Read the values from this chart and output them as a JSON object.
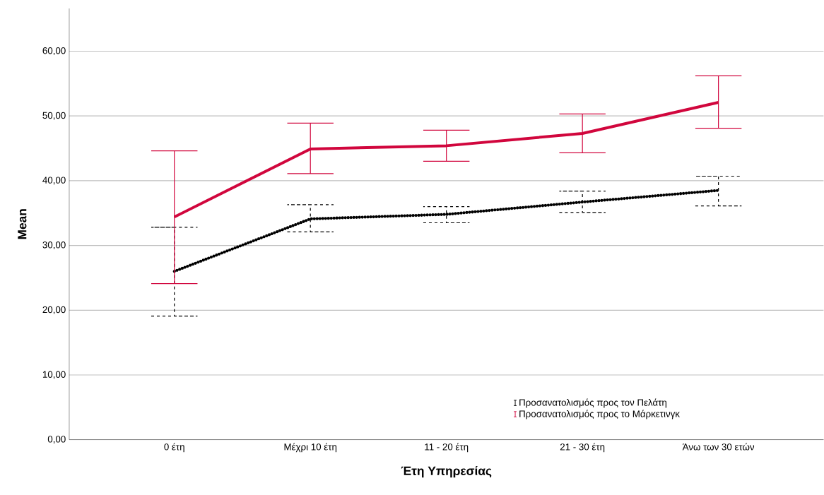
{
  "chart_data": {
    "type": "line",
    "xlabel": "Έτη Υπηρεσίας",
    "ylabel": "Mean",
    "categories": [
      "0 έτη",
      "Μέχρι 10 έτη",
      "11 - 20 έτη",
      "21 - 30 έτη",
      "Άνω των 30 ετών"
    ],
    "series": [
      {
        "name": "Προσανατολισμός προς τον Πελάτη",
        "color": "#000000",
        "line_style": "dotted",
        "values": [
          26.0,
          34.1,
          34.8,
          36.7,
          38.5
        ],
        "errors": [
          [
            19.1,
            32.8
          ],
          [
            32.1,
            36.3
          ],
          [
            33.5,
            36.0
          ],
          [
            35.1,
            38.4
          ],
          [
            36.1,
            40.7
          ]
        ]
      },
      {
        "name": "Προσανατολισμός προς το Μάρκετινγκ",
        "color": "#d1063d",
        "line_style": "solid",
        "values": [
          34.4,
          44.9,
          45.4,
          47.3,
          52.1
        ],
        "errors": [
          [
            24.1,
            44.6
          ],
          [
            41.1,
            48.9
          ],
          [
            43.0,
            47.8
          ],
          [
            44.3,
            50.3
          ],
          [
            48.1,
            56.2
          ]
        ]
      }
    ],
    "ylim": [
      0,
      66.6
    ],
    "yticks": [
      {
        "value": 0,
        "label": "0,00"
      },
      {
        "value": 10,
        "label": "10,00"
      },
      {
        "value": 20,
        "label": "20,00"
      },
      {
        "value": 30,
        "label": "30,00"
      },
      {
        "value": 40,
        "label": "40,00"
      },
      {
        "value": 50,
        "label": "50,00"
      },
      {
        "value": 60,
        "label": "60,00"
      }
    ],
    "grid": "y",
    "legend": "bottom right",
    "marker": "none"
  }
}
